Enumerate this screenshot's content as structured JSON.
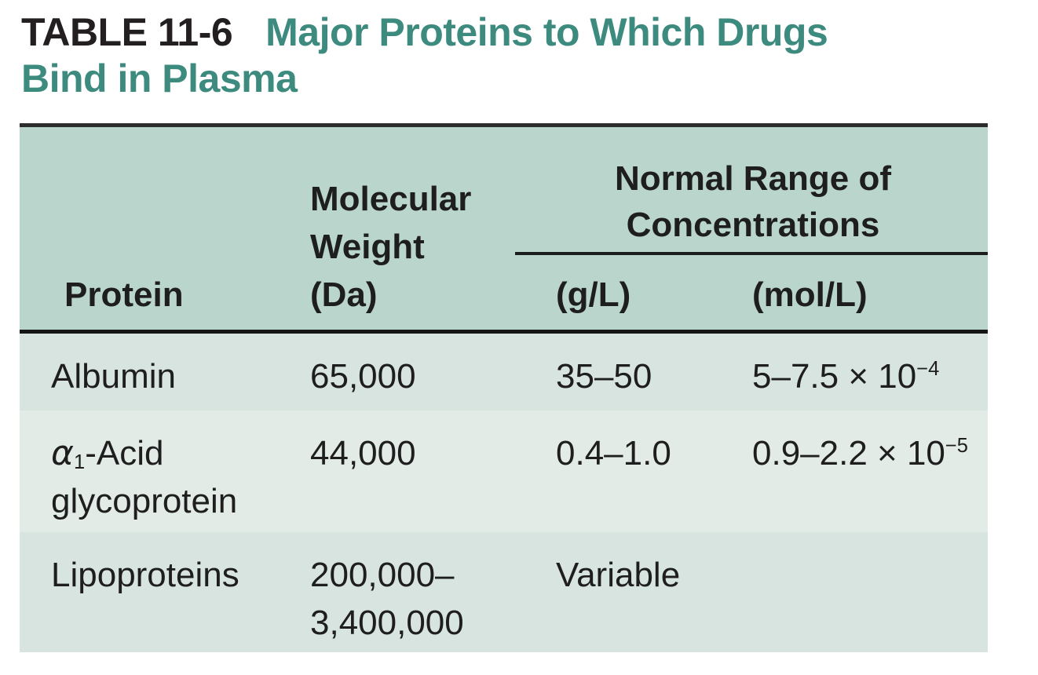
{
  "title": {
    "label": "TABLE 11-6",
    "line1": "Major Proteins to Which Drugs",
    "line2": "Bind in Plasma"
  },
  "colors": {
    "title_accent": "#3d8a7e",
    "title_label": "#231f20",
    "header_bg": "#bad5cc",
    "row_odd_bg": "#d8e4e0",
    "row_even_bg": "#e3ebe7",
    "rule": "#1d1d1d",
    "body_text": "#1e1e1e"
  },
  "table": {
    "header": {
      "protein": "Protein",
      "molecular_weight": "Molecular\nWeight\n(Da)",
      "span_title": "Normal Range of\nConcentrations",
      "unit_gl": "(g/L)",
      "unit_mol": "(mol/L)"
    },
    "rows": [
      {
        "protein": "Albumin",
        "mw": "65,000",
        "g_l": "35–50",
        "mol_base": "5–7.5 × 10",
        "mol_sup": "−4"
      },
      {
        "protein_alpha": "α",
        "protein_alpha_sub": "1",
        "protein_rest": "-Acid\nglycoprotein",
        "mw": "44,000",
        "g_l": "0.4–1.0",
        "mol_base": "0.9–2.2 × 10",
        "mol_sup": "−5"
      },
      {
        "protein": "Lipoproteins",
        "mw": "200,000–\n3,400,000",
        "g_l": "Variable",
        "mol_base": "",
        "mol_sup": ""
      }
    ]
  }
}
